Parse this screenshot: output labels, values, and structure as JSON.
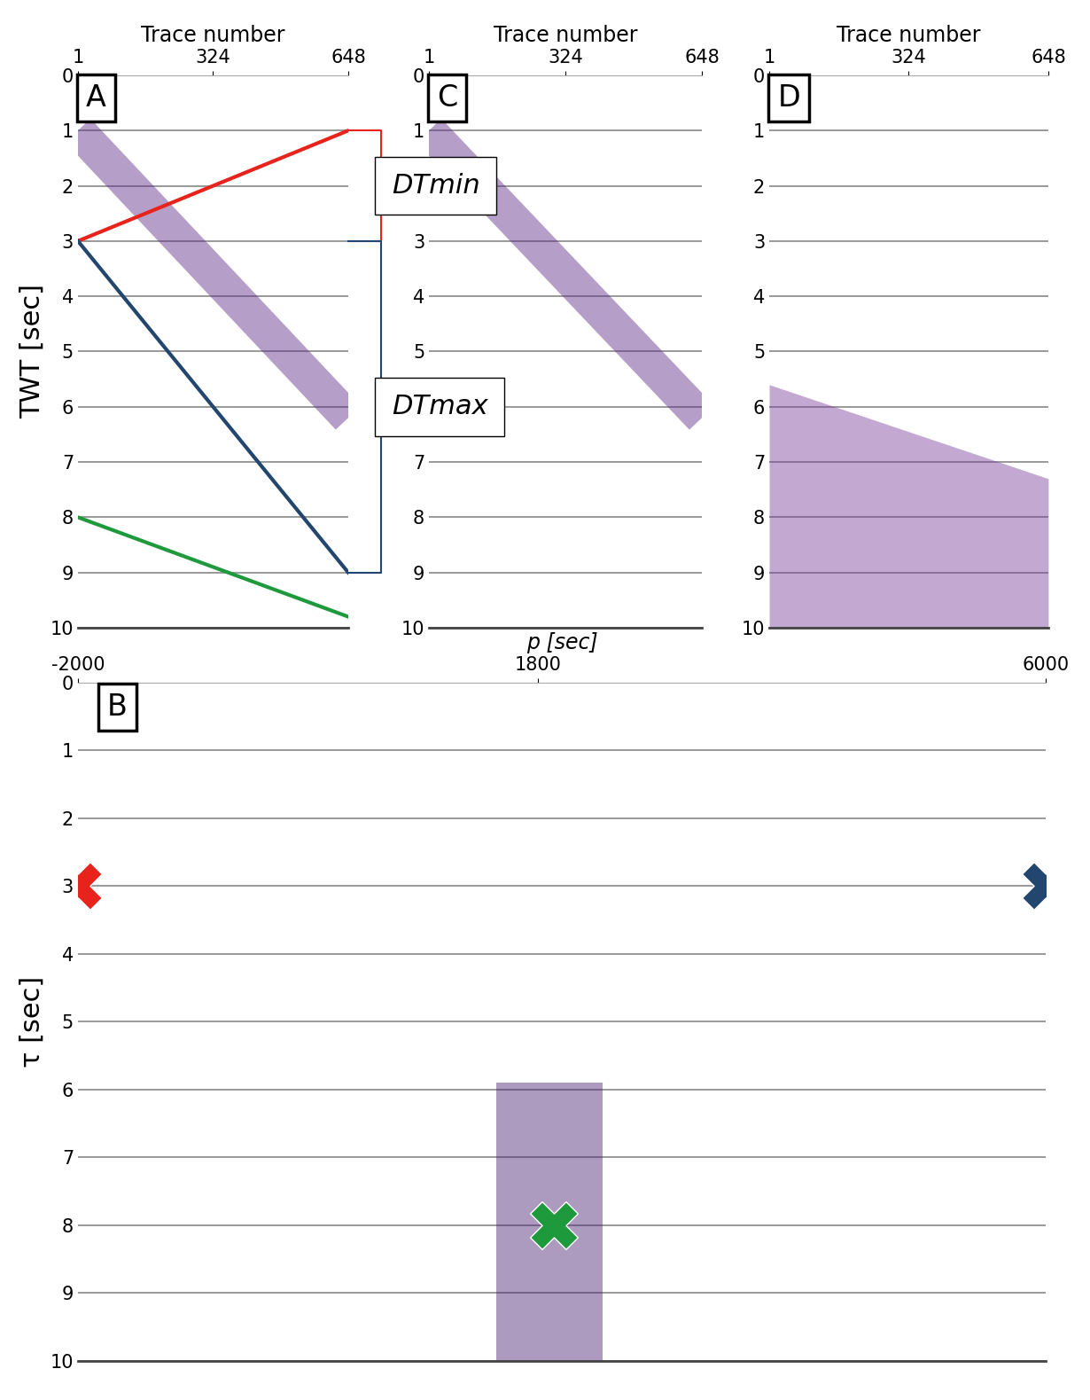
{
  "chart_data": [
    {
      "type": "line",
      "title": "A",
      "x_label": "Trace number",
      "y_label": "TWT [sec]",
      "xlim": [
        1,
        648
      ],
      "xticks": [
        1,
        324,
        648
      ],
      "ylim": [
        10,
        0
      ],
      "yticks": [
        0,
        1,
        2,
        3,
        4,
        5,
        6,
        7,
        8,
        9,
        10
      ],
      "grid": true,
      "series": [
        {
          "type": "band",
          "color": "#5b2a86",
          "x": [
            1,
            648
          ],
          "values": [
            1,
            6.2
          ]
        },
        {
          "type": "line",
          "color": "#e8231c",
          "x": [
            1,
            648
          ],
          "values": [
            3,
            1
          ]
        },
        {
          "type": "line",
          "color": "#22466e",
          "x": [
            1,
            648
          ],
          "values": [
            3,
            9
          ]
        },
        {
          "type": "line",
          "color": "#1e9a3c",
          "x": [
            1,
            648
          ],
          "values": [
            8,
            9.8
          ]
        }
      ],
      "annotations": [
        {
          "text": "DTmin",
          "y_range": [
            1,
            3
          ],
          "color": "#e8231c"
        },
        {
          "text": "DTmax",
          "y_range": [
            3,
            9
          ],
          "color": "#22466e"
        }
      ]
    },
    {
      "type": "line",
      "title": "C",
      "x_label": "Trace number",
      "xlim": [
        1,
        648
      ],
      "xticks": [
        1,
        324,
        648
      ],
      "ylim": [
        10,
        0
      ],
      "yticks": [
        0,
        1,
        2,
        3,
        4,
        5,
        6,
        7,
        8,
        9,
        10
      ],
      "grid": true,
      "series": [
        {
          "type": "band",
          "color": "#5b2a86",
          "x": [
            1,
            648
          ],
          "values": [
            1,
            6.2
          ]
        }
      ]
    },
    {
      "type": "area",
      "title": "D",
      "x_label": "Trace number",
      "xlim": [
        1,
        648
      ],
      "xticks": [
        1,
        324,
        648
      ],
      "ylim": [
        10,
        0
      ],
      "yticks": [
        0,
        1,
        2,
        3,
        4,
        5,
        6,
        7,
        8,
        9,
        10
      ],
      "grid": true,
      "series": [
        {
          "type": "area",
          "color": "#7a3e9d",
          "x": [
            1,
            648
          ],
          "values": [
            5.6,
            7.3
          ]
        }
      ]
    },
    {
      "type": "scatter",
      "title": "B",
      "x_label": "p [sec]",
      "y_label": "τ [sec]",
      "xlim": [
        -2000,
        6000
      ],
      "xticks": [
        -2000,
        1800,
        6000
      ],
      "ylim": [
        10,
        0
      ],
      "yticks": [
        0,
        1,
        2,
        3,
        4,
        5,
        6,
        7,
        8,
        9,
        10
      ],
      "grid": true,
      "series": [
        {
          "type": "area",
          "color": "#4b1f73",
          "x": [
            1460,
            2340
          ],
          "values": [
            5.9,
            5.9
          ]
        },
        {
          "type": "scatter",
          "color": "#e8231c",
          "marker": "X",
          "x": [
            -2000
          ],
          "values": [
            3
          ]
        },
        {
          "type": "scatter",
          "color": "#22466e",
          "marker": "X",
          "x": [
            6000
          ],
          "values": [
            3
          ]
        },
        {
          "type": "scatter",
          "color": "#1e9a3c",
          "marker": "X",
          "x": [
            1930
          ],
          "values": [
            8
          ]
        }
      ]
    }
  ]
}
